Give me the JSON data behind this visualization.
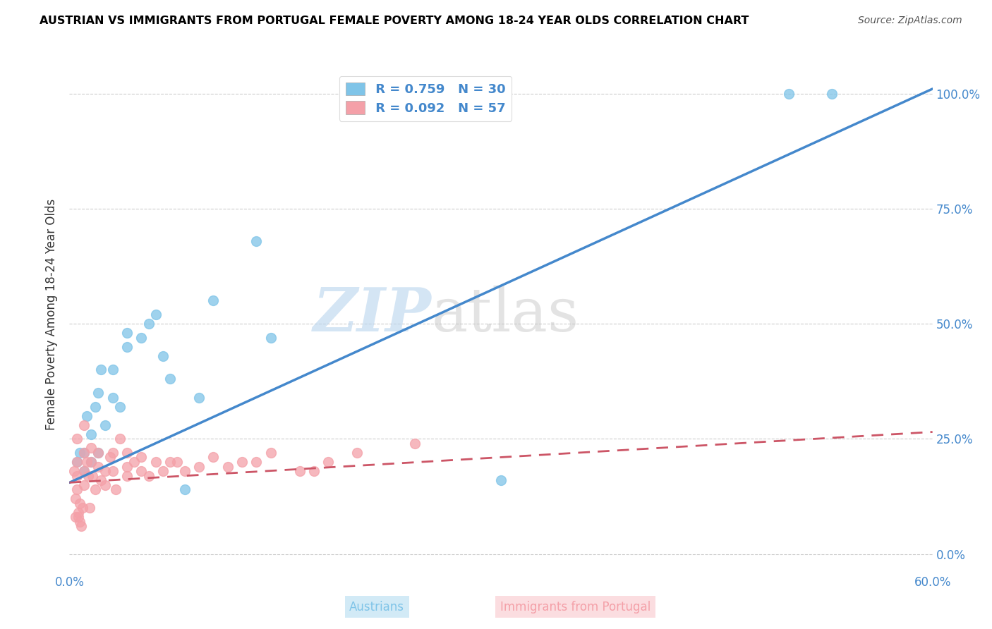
{
  "title": "AUSTRIAN VS IMMIGRANTS FROM PORTUGAL FEMALE POVERTY AMONG 18-24 YEAR OLDS CORRELATION CHART",
  "source": "Source: ZipAtlas.com",
  "ylabel": "Female Poverty Among 18-24 Year Olds",
  "xmin": 0.0,
  "xmax": 0.6,
  "ymin": -0.04,
  "ymax": 1.08,
  "yticks": [
    0.0,
    0.25,
    0.5,
    0.75,
    1.0
  ],
  "ytick_labels": [
    "0.0%",
    "25.0%",
    "50.0%",
    "75.0%",
    "100.0%"
  ],
  "xticks": [
    0.0,
    0.1,
    0.2,
    0.3,
    0.4,
    0.5,
    0.6
  ],
  "xtick_labels": [
    "0.0%",
    "",
    "",
    "",
    "",
    "",
    "60.0%"
  ],
  "legend_r1": "R = 0.759",
  "legend_n1": "N = 30",
  "legend_r2": "R = 0.092",
  "legend_n2": "N = 57",
  "color_austrians": "#7fc4e8",
  "color_portugal": "#f4a0a8",
  "color_line1": "#4488cc",
  "color_line2": "#cc5566",
  "watermark_zip": "ZIP",
  "watermark_atlas": "atlas",
  "austrians_x": [
    0.005,
    0.007,
    0.01,
    0.01,
    0.012,
    0.015,
    0.015,
    0.018,
    0.02,
    0.02,
    0.022,
    0.025,
    0.03,
    0.03,
    0.035,
    0.04,
    0.04,
    0.05,
    0.055,
    0.06,
    0.065,
    0.07,
    0.08,
    0.09,
    0.1,
    0.13,
    0.14,
    0.3,
    0.5,
    0.53
  ],
  "austrians_y": [
    0.2,
    0.22,
    0.18,
    0.22,
    0.3,
    0.2,
    0.26,
    0.32,
    0.35,
    0.22,
    0.4,
    0.28,
    0.34,
    0.4,
    0.32,
    0.45,
    0.48,
    0.47,
    0.5,
    0.52,
    0.43,
    0.38,
    0.14,
    0.34,
    0.55,
    0.68,
    0.47,
    0.16,
    1.0,
    1.0
  ],
  "portugal_x": [
    0.003,
    0.004,
    0.004,
    0.005,
    0.005,
    0.005,
    0.005,
    0.006,
    0.006,
    0.007,
    0.007,
    0.008,
    0.009,
    0.01,
    0.01,
    0.01,
    0.01,
    0.012,
    0.013,
    0.014,
    0.015,
    0.015,
    0.016,
    0.018,
    0.02,
    0.02,
    0.022,
    0.025,
    0.025,
    0.028,
    0.03,
    0.03,
    0.032,
    0.035,
    0.04,
    0.04,
    0.04,
    0.045,
    0.05,
    0.05,
    0.055,
    0.06,
    0.065,
    0.07,
    0.075,
    0.08,
    0.09,
    0.1,
    0.11,
    0.12,
    0.13,
    0.14,
    0.16,
    0.17,
    0.18,
    0.2,
    0.24
  ],
  "portugal_y": [
    0.18,
    0.12,
    0.08,
    0.25,
    0.2,
    0.17,
    0.14,
    0.09,
    0.08,
    0.07,
    0.11,
    0.06,
    0.1,
    0.28,
    0.22,
    0.18,
    0.15,
    0.2,
    0.17,
    0.1,
    0.23,
    0.2,
    0.17,
    0.14,
    0.19,
    0.22,
    0.16,
    0.18,
    0.15,
    0.21,
    0.22,
    0.18,
    0.14,
    0.25,
    0.17,
    0.19,
    0.22,
    0.2,
    0.21,
    0.18,
    0.17,
    0.2,
    0.18,
    0.2,
    0.2,
    0.18,
    0.19,
    0.21,
    0.19,
    0.2,
    0.2,
    0.22,
    0.18,
    0.18,
    0.2,
    0.22,
    0.24
  ],
  "blue_line_x0": 0.0,
  "blue_line_y0": 0.155,
  "blue_line_x1": 0.6,
  "blue_line_y1": 1.01,
  "pink_line_x0": 0.0,
  "pink_line_y0": 0.155,
  "pink_line_x1": 0.6,
  "pink_line_y1": 0.265
}
